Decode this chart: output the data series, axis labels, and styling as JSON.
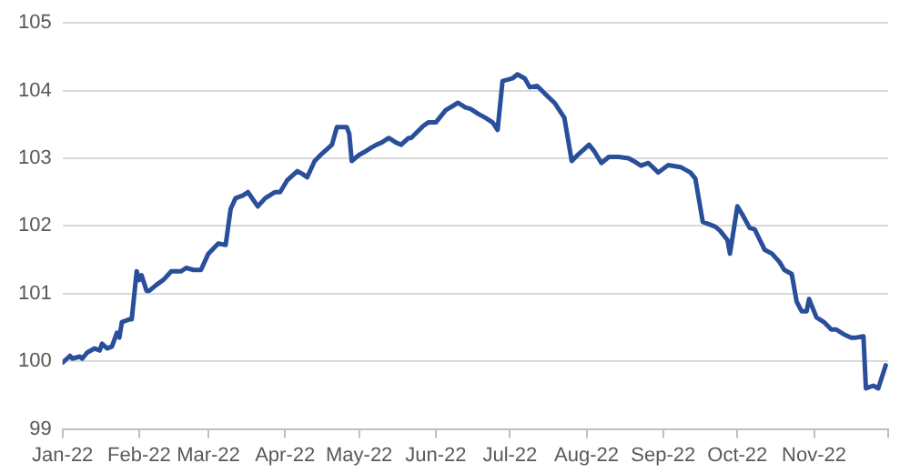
{
  "chart_data": {
    "type": "line",
    "x": [
      "2022-01-01",
      "2022-01-04",
      "2022-01-05",
      "2022-01-08",
      "2022-01-09",
      "2022-01-11",
      "2022-01-14",
      "2022-01-16",
      "2022-01-17",
      "2022-01-19",
      "2022-01-21",
      "2022-01-23",
      "2022-01-24",
      "2022-01-25",
      "2022-01-28",
      "2022-01-29",
      "2022-01-31",
      "2022-02-01",
      "2022-02-02",
      "2022-02-04",
      "2022-02-05",
      "2022-02-08",
      "2022-02-11",
      "2022-02-14",
      "2022-02-18",
      "2022-02-20",
      "2022-02-23",
      "2022-02-26",
      "2022-03-01",
      "2022-03-05",
      "2022-03-08",
      "2022-03-10",
      "2022-03-12",
      "2022-03-15",
      "2022-03-17",
      "2022-03-21",
      "2022-03-24",
      "2022-03-28",
      "2022-03-30",
      "2022-04-02",
      "2022-04-06",
      "2022-04-08",
      "2022-04-10",
      "2022-04-13",
      "2022-04-16",
      "2022-04-20",
      "2022-04-22",
      "2022-04-26",
      "2022-04-27",
      "2022-04-28",
      "2022-05-01",
      "2022-05-03",
      "2022-05-06",
      "2022-05-08",
      "2022-05-10",
      "2022-05-13",
      "2022-05-16",
      "2022-05-18",
      "2022-05-21",
      "2022-05-22",
      "2022-05-27",
      "2022-05-29",
      "2022-06-01",
      "2022-06-05",
      "2022-06-10",
      "2022-06-13",
      "2022-06-15",
      "2022-06-18",
      "2022-06-21",
      "2022-06-24",
      "2022-06-26",
      "2022-06-28",
      "2022-07-02",
      "2022-07-04",
      "2022-07-07",
      "2022-07-09",
      "2022-07-12",
      "2022-07-15",
      "2022-07-19",
      "2022-07-23",
      "2022-07-26",
      "2022-07-29",
      "2022-08-02",
      "2022-08-04",
      "2022-08-07",
      "2022-08-10",
      "2022-08-14",
      "2022-08-18",
      "2022-08-20",
      "2022-08-23",
      "2022-08-26",
      "2022-08-30",
      "2022-09-03",
      "2022-09-08",
      "2022-09-12",
      "2022-09-14",
      "2022-09-17",
      "2022-09-22",
      "2022-09-24",
      "2022-09-27",
      "2022-09-28",
      "2022-10-01",
      "2022-10-03",
      "2022-10-06",
      "2022-10-08",
      "2022-10-12",
      "2022-10-15",
      "2022-10-18",
      "2022-10-20",
      "2022-10-23",
      "2022-10-25",
      "2022-10-27",
      "2022-10-29",
      "2022-10-30",
      "2022-11-02",
      "2022-11-05",
      "2022-11-08",
      "2022-11-10",
      "2022-11-13",
      "2022-11-16",
      "2022-11-18",
      "2022-11-21",
      "2022-11-22",
      "2022-11-25",
      "2022-11-27",
      "2022-11-30"
    ],
    "series": [
      {
        "color": "#2a4f9a",
        "values": [
          99.98,
          100.08,
          100.04,
          100.07,
          100.04,
          100.13,
          100.19,
          100.16,
          100.26,
          100.19,
          100.22,
          100.42,
          100.35,
          100.58,
          100.62,
          100.62,
          101.33,
          101.2,
          101.27,
          101.04,
          101.04,
          101.13,
          101.21,
          101.33,
          101.33,
          101.38,
          101.35,
          101.35,
          101.59,
          101.74,
          101.72,
          102.25,
          102.41,
          102.45,
          102.5,
          102.29,
          102.41,
          102.5,
          102.5,
          102.68,
          102.81,
          102.77,
          102.72,
          102.96,
          103.07,
          103.2,
          103.46,
          103.46,
          103.36,
          102.96,
          103.05,
          103.09,
          103.16,
          103.2,
          103.23,
          103.3,
          103.23,
          103.2,
          103.3,
          103.3,
          103.48,
          103.53,
          103.53,
          103.71,
          103.82,
          103.75,
          103.73,
          103.66,
          103.6,
          103.53,
          103.42,
          104.14,
          104.18,
          104.24,
          104.18,
          104.05,
          104.07,
          103.96,
          103.82,
          103.6,
          102.96,
          103.07,
          103.2,
          103.11,
          102.93,
          103.02,
          103.02,
          103.0,
          102.96,
          102.89,
          102.93,
          102.79,
          102.9,
          102.87,
          102.79,
          102.7,
          102.06,
          101.99,
          101.93,
          101.79,
          101.59,
          102.29,
          102.17,
          101.97,
          101.95,
          101.65,
          101.59,
          101.47,
          101.35,
          101.29,
          100.88,
          100.74,
          100.74,
          100.92,
          100.65,
          100.58,
          100.47,
          100.47,
          100.4,
          100.35,
          100.35,
          100.37,
          99.6,
          99.64,
          99.6,
          99.94
        ]
      }
    ],
    "xlim": [
      "2022-01-01",
      "2022-12-01"
    ],
    "xticks": [
      {
        "value": "2022-01-01",
        "label": "Jan-22"
      },
      {
        "value": "2022-02-01",
        "label": "Feb-22"
      },
      {
        "value": "2022-03-01",
        "label": "Mar-22"
      },
      {
        "value": "2022-04-01",
        "label": "Apr-22"
      },
      {
        "value": "2022-05-01",
        "label": "May-22"
      },
      {
        "value": "2022-06-01",
        "label": "Jun-22"
      },
      {
        "value": "2022-07-01",
        "label": "Jul-22"
      },
      {
        "value": "2022-08-01",
        "label": "Aug-22"
      },
      {
        "value": "2022-09-01",
        "label": "Sep-22"
      },
      {
        "value": "2022-10-01",
        "label": "Oct-22"
      },
      {
        "value": "2022-11-01",
        "label": "Nov-22"
      },
      {
        "value": "2022-12-01",
        "label": null
      }
    ],
    "ylim": [
      99,
      105
    ],
    "yticks": [
      99,
      100,
      101,
      102,
      103,
      104,
      105
    ],
    "grid": "y",
    "legend": false,
    "marker": "none",
    "line_style": "solid"
  }
}
